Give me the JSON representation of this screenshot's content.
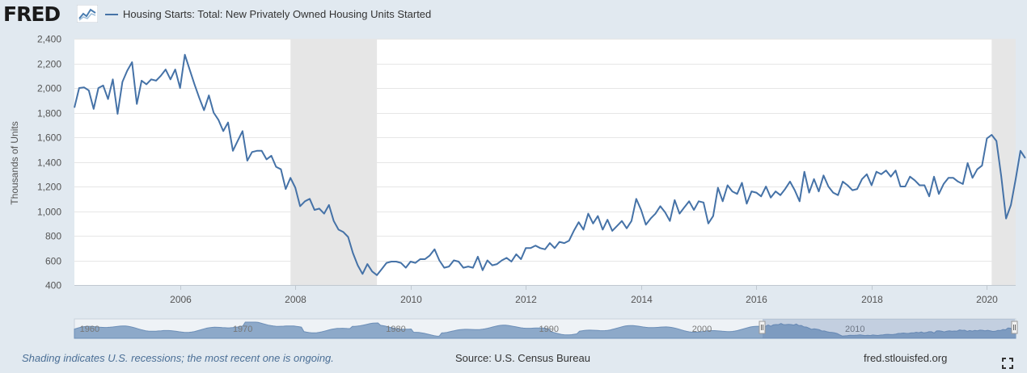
{
  "header": {
    "logo_text": "FRED",
    "logo_icon": "fred-line-chart-icon",
    "series_title": "Housing Starts: Total: New Privately Owned Housing Units Started"
  },
  "colors": {
    "background": "#e1e9f0",
    "plot_background": "#ffffff",
    "series_line": "#4572a7",
    "recession_shading": "#e6e6e6",
    "navigator_fill": "#8da9c9",
    "note_text": "#4b6f96"
  },
  "footer": {
    "note": "Shading indicates U.S. recessions; the most recent one is ongoing.",
    "source": "Source: U.S. Census Bureau",
    "url": "fred.stlouisfed.org",
    "expand_icon": "fullscreen-expand-icon"
  },
  "navigator": {
    "tick_labels": [
      "1960",
      "1970",
      "1980",
      "1990",
      "2000",
      "2010"
    ],
    "selected_range": [
      "2004-03",
      "2020-07"
    ]
  },
  "chart_data": {
    "type": "line",
    "title": "",
    "xlabel": "",
    "ylabel": "Thousands of Units",
    "ylim": [
      400,
      2400
    ],
    "yticks": [
      400,
      600,
      800,
      1000,
      1200,
      1400,
      1600,
      1800,
      2000,
      2200,
      2400
    ],
    "ytick_labels": [
      "400",
      "600",
      "800",
      "1,000",
      "1,200",
      "1,400",
      "1,600",
      "1,800",
      "2,000",
      "2,200",
      "2,400"
    ],
    "xlim": [
      "2004-03",
      "2020-07"
    ],
    "xticks": [
      "2006-01",
      "2008-01",
      "2010-01",
      "2012-01",
      "2014-01",
      "2016-01",
      "2018-01",
      "2020-01"
    ],
    "xtick_labels": [
      "2006",
      "2008",
      "2010",
      "2012",
      "2014",
      "2016",
      "2018",
      "2020"
    ],
    "grid": "horizontal",
    "legend_placement": "top",
    "recessions": [
      [
        "2007-12",
        "2009-06"
      ],
      [
        "2020-02",
        "2020-07"
      ]
    ],
    "series": [
      {
        "name": "Housing Starts: Total: New Privately Owned Housing Units Started",
        "frequency": "monthly",
        "start": "2004-03",
        "values": [
          1840,
          2000,
          2005,
          1980,
          1830,
          2000,
          2020,
          1910,
          2070,
          1790,
          2050,
          2140,
          2210,
          1870,
          2060,
          2030,
          2070,
          2060,
          2100,
          2150,
          2070,
          2150,
          2000,
          2270,
          2150,
          2030,
          1920,
          1820,
          1940,
          1800,
          1740,
          1650,
          1720,
          1490,
          1570,
          1650,
          1410,
          1480,
          1490,
          1490,
          1420,
          1450,
          1360,
          1340,
          1180,
          1270,
          1190,
          1040,
          1080,
          1100,
          1010,
          1020,
          980,
          1050,
          920,
          850,
          830,
          790,
          660,
          560,
          490,
          570,
          510,
          480,
          530,
          580,
          590,
          590,
          580,
          540,
          590,
          580,
          610,
          610,
          640,
          690,
          600,
          540,
          550,
          600,
          590,
          540,
          550,
          540,
          630,
          520,
          600,
          560,
          570,
          600,
          620,
          590,
          650,
          610,
          700,
          700,
          720,
          700,
          690,
          740,
          700,
          750,
          740,
          760,
          840,
          910,
          850,
          980,
          900,
          960,
          850,
          930,
          840,
          880,
          920,
          860,
          920,
          1100,
          1010,
          890,
          940,
          980,
          1040,
          990,
          920,
          1090,
          980,
          1030,
          1080,
          1010,
          1080,
          1070,
          900,
          960,
          1190,
          1080,
          1210,
          1160,
          1140,
          1230,
          1060,
          1160,
          1150,
          1120,
          1200,
          1110,
          1160,
          1130,
          1180,
          1240,
          1170,
          1080,
          1320,
          1150,
          1260,
          1160,
          1290,
          1200,
          1150,
          1130,
          1240,
          1210,
          1170,
          1180,
          1260,
          1300,
          1210,
          1320,
          1300,
          1330,
          1280,
          1330,
          1200,
          1200,
          1280,
          1250,
          1210,
          1210,
          1120,
          1280,
          1140,
          1220,
          1270,
          1270,
          1240,
          1220,
          1390,
          1270,
          1340,
          1370,
          1590,
          1620,
          1570,
          1280,
          940,
          1050,
          1260,
          1490,
          1430
        ]
      }
    ]
  }
}
